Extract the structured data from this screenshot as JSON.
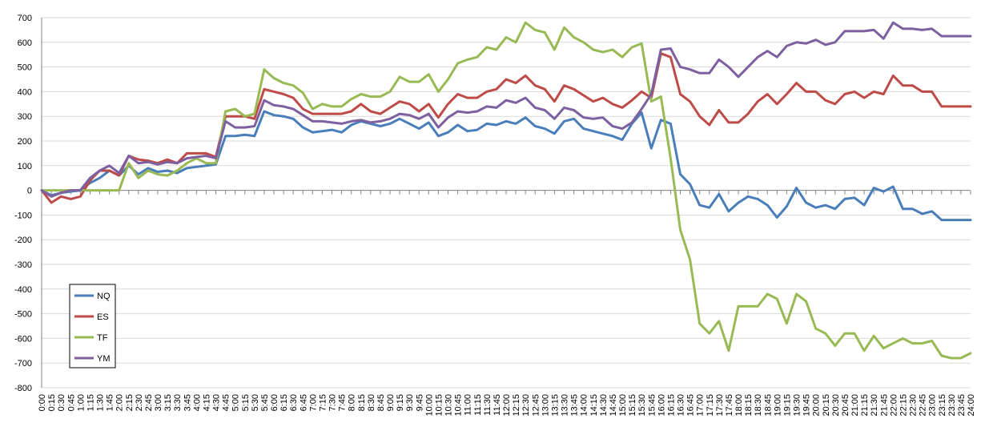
{
  "chart_data": {
    "type": "line",
    "title": "",
    "xlabel": "",
    "ylabel": "",
    "ylim": [
      -800,
      700
    ],
    "y_ticks": [
      700,
      600,
      500,
      400,
      300,
      200,
      100,
      0,
      -100,
      -200,
      -300,
      -400,
      -500,
      -600,
      -700,
      -800
    ],
    "grid": "horizontal",
    "legend_position": "bottom-left",
    "x": [
      "0:00",
      "0:15",
      "0:30",
      "0:45",
      "1:00",
      "1:15",
      "1:30",
      "1:45",
      "2:00",
      "2:15",
      "2:30",
      "2:45",
      "3:00",
      "3:15",
      "3:30",
      "3:45",
      "4:00",
      "4:15",
      "4:30",
      "4:45",
      "5:00",
      "5:15",
      "5:30",
      "5:45",
      "6:00",
      "6:15",
      "6:30",
      "6:45",
      "7:00",
      "7:15",
      "7:30",
      "7:45",
      "8:00",
      "8:15",
      "8:30",
      "8:45",
      "9:00",
      "9:15",
      "9:30",
      "9:45",
      "10:00",
      "10:15",
      "10:30",
      "10:45",
      "11:00",
      "11:15",
      "11:30",
      "11:45",
      "12:00",
      "12:15",
      "12:30",
      "12:45",
      "13:00",
      "13:15",
      "13:30",
      "13:45",
      "14:00",
      "14:15",
      "14:30",
      "14:45",
      "15:00",
      "15:15",
      "15:30",
      "15:45",
      "16:00",
      "16:15",
      "16:30",
      "16:45",
      "17:00",
      "17:15",
      "17:30",
      "17:45",
      "18:00",
      "18:15",
      "18:30",
      "18:45",
      "19:00",
      "19:15",
      "19:30",
      "19:45",
      "20:00",
      "20:15",
      "20:30",
      "20:45",
      "21:00",
      "21:15",
      "21:30",
      "21:45",
      "22:00",
      "22:15",
      "22:30",
      "22:45",
      "23:00",
      "23:15",
      "23:30",
      "23:45",
      "24:00"
    ],
    "series": [
      {
        "name": "NQ",
        "color": "#4a7ebb",
        "values": [
          0,
          -20,
          -10,
          -5,
          0,
          30,
          50,
          80,
          60,
          100,
          65,
          90,
          75,
          80,
          70,
          90,
          95,
          100,
          105,
          220,
          220,
          225,
          220,
          320,
          305,
          300,
          290,
          255,
          235,
          240,
          245,
          235,
          265,
          280,
          270,
          260,
          270,
          290,
          270,
          250,
          275,
          220,
          235,
          265,
          240,
          245,
          270,
          265,
          280,
          270,
          295,
          260,
          250,
          230,
          280,
          290,
          250,
          240,
          230,
          220,
          205,
          270,
          315,
          170,
          285,
          270,
          65,
          25,
          -60,
          -70,
          -15,
          -85,
          -50,
          -25,
          -35,
          -60,
          -110,
          -65,
          10,
          -50,
          -70,
          -60,
          -75,
          -35,
          -30,
          -60,
          10,
          -5,
          15,
          -75,
          -75,
          -95,
          -85,
          -120,
          -120,
          -120,
          -120
        ]
      },
      {
        "name": "ES",
        "color": "#be4b48",
        "values": [
          0,
          -50,
          -25,
          -35,
          -25,
          40,
          80,
          80,
          60,
          140,
          125,
          120,
          110,
          125,
          110,
          150,
          150,
          150,
          135,
          300,
          300,
          300,
          290,
          410,
          400,
          390,
          375,
          330,
          310,
          310,
          310,
          310,
          320,
          350,
          320,
          310,
          335,
          360,
          350,
          320,
          350,
          295,
          350,
          390,
          375,
          375,
          400,
          410,
          450,
          435,
          465,
          425,
          410,
          360,
          425,
          410,
          385,
          360,
          375,
          350,
          335,
          365,
          400,
          375,
          555,
          540,
          390,
          360,
          300,
          265,
          325,
          275,
          275,
          310,
          360,
          390,
          350,
          390,
          435,
          400,
          400,
          365,
          350,
          390,
          400,
          375,
          400,
          390,
          465,
          425,
          425,
          400,
          400,
          340,
          340,
          340,
          340
        ]
      },
      {
        "name": "TF",
        "color": "#98b954",
        "values": [
          0,
          0,
          0,
          0,
          0,
          0,
          0,
          0,
          0,
          110,
          50,
          80,
          65,
          60,
          80,
          110,
          130,
          110,
          110,
          320,
          330,
          300,
          310,
          490,
          455,
          435,
          425,
          395,
          330,
          350,
          340,
          340,
          370,
          390,
          380,
          380,
          400,
          460,
          440,
          440,
          470,
          400,
          450,
          515,
          530,
          540,
          580,
          570,
          620,
          600,
          680,
          650,
          640,
          570,
          660,
          620,
          600,
          570,
          560,
          570,
          540,
          580,
          595,
          360,
          380,
          130,
          -160,
          -280,
          -540,
          -580,
          -530,
          -650,
          -470,
          -470,
          -470,
          -420,
          -440,
          -540,
          -420,
          -450,
          -560,
          -580,
          -630,
          -580,
          -580,
          -650,
          -590,
          -640,
          -620,
          -600,
          -620,
          -620,
          -610,
          -670,
          -680,
          -680,
          -660
        ]
      },
      {
        "name": "YM",
        "color": "#7d60a0",
        "values": [
          0,
          -25,
          -10,
          0,
          0,
          50,
          80,
          100,
          70,
          140,
          110,
          115,
          105,
          115,
          110,
          130,
          135,
          140,
          130,
          280,
          255,
          255,
          260,
          365,
          345,
          340,
          330,
          305,
          280,
          280,
          275,
          270,
          280,
          285,
          275,
          280,
          290,
          310,
          305,
          290,
          310,
          255,
          295,
          320,
          315,
          320,
          340,
          335,
          365,
          355,
          375,
          335,
          325,
          290,
          335,
          325,
          295,
          290,
          295,
          260,
          250,
          275,
          330,
          390,
          570,
          575,
          500,
          490,
          475,
          475,
          530,
          500,
          460,
          500,
          540,
          565,
          540,
          585,
          600,
          595,
          610,
          590,
          600,
          645,
          645,
          645,
          650,
          615,
          680,
          655,
          655,
          650,
          655,
          625,
          625,
          625,
          625
        ]
      }
    ]
  }
}
